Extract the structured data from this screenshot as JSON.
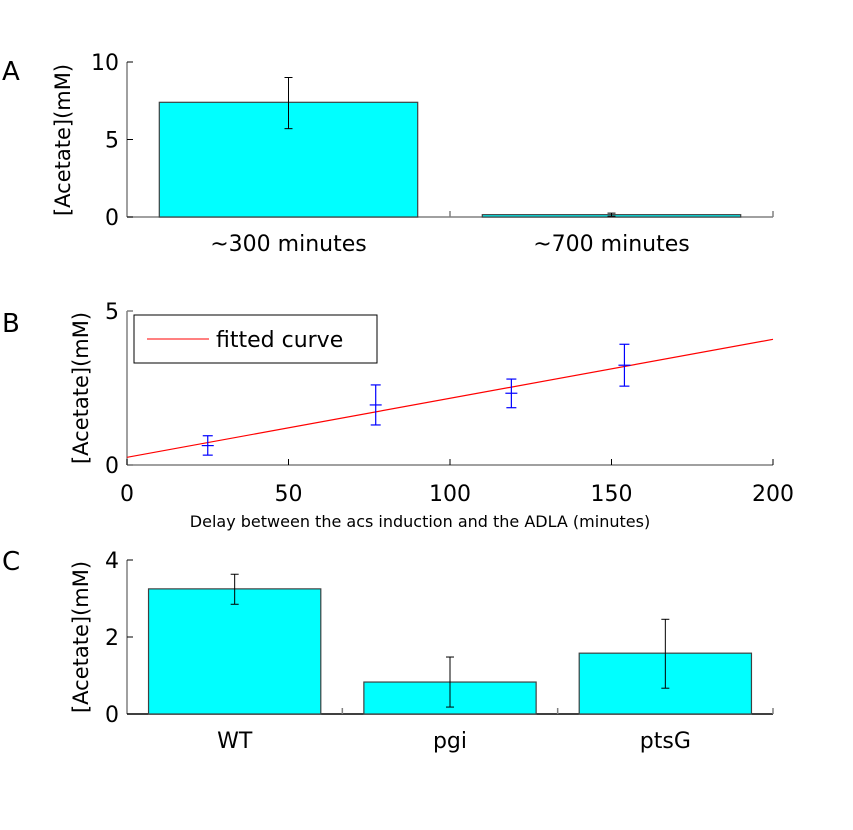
{
  "colors": {
    "bar_fill": "#00FFFF",
    "bar_edge": "#404040",
    "axis": "#808080",
    "errorbar": "#000000",
    "scatter_errorbar": "#0000FF",
    "fit_line": "#FF0000"
  },
  "chart_data": [
    {
      "panel": "A",
      "type": "bar",
      "title": "",
      "xlabel": "",
      "ylabel": "[Acetate](mM)",
      "ylim": [
        0,
        10
      ],
      "yticks": [
        0,
        5,
        10
      ],
      "ytick_labels": [
        "0",
        "5",
        "10"
      ],
      "categories": [
        "~300 minutes",
        "~700 minutes"
      ],
      "values": [
        7.4,
        0.15
      ],
      "errors_low": [
        5.7,
        0.05
      ],
      "errors_high": [
        9.0,
        0.25
      ],
      "grid": false
    },
    {
      "panel": "B",
      "type": "scatter",
      "title": "",
      "xlabel": "Delay between the acs induction and the ADLA (minutes)",
      "ylabel": "[Acetate](mM)",
      "xlim": [
        0,
        200
      ],
      "ylim": [
        0,
        5
      ],
      "xticks": [
        0,
        50,
        100,
        150,
        200
      ],
      "xtick_labels": [
        "0",
        "50",
        "100",
        "150",
        "200"
      ],
      "yticks": [
        0,
        5
      ],
      "ytick_labels": [
        "0",
        "5"
      ],
      "points": {
        "x": [
          25,
          77,
          119,
          154
        ],
        "y": [
          0.63,
          1.95,
          2.33,
          3.24
        ],
        "err_low": [
          0.32,
          1.3,
          1.86,
          2.56
        ],
        "err_high": [
          0.95,
          2.6,
          2.79,
          3.92
        ]
      },
      "fit_line": {
        "name": "fitted curve",
        "x": [
          0,
          200
        ],
        "y": [
          0.25,
          4.08
        ]
      },
      "legend": {
        "entries": [
          "fitted curve"
        ],
        "placement": "top-left"
      },
      "grid": false
    },
    {
      "panel": "C",
      "type": "bar",
      "title": "",
      "xlabel": "",
      "ylabel": "[Acetate](mM)",
      "ylim": [
        0,
        4
      ],
      "yticks": [
        0,
        2,
        4
      ],
      "ytick_labels": [
        "0",
        "2",
        "4"
      ],
      "categories": [
        "WT",
        "pgi",
        "ptsG"
      ],
      "values": [
        3.25,
        0.83,
        1.58
      ],
      "errors_low": [
        2.85,
        0.18,
        0.67
      ],
      "errors_high": [
        3.63,
        1.48,
        2.46
      ],
      "grid": false
    }
  ]
}
